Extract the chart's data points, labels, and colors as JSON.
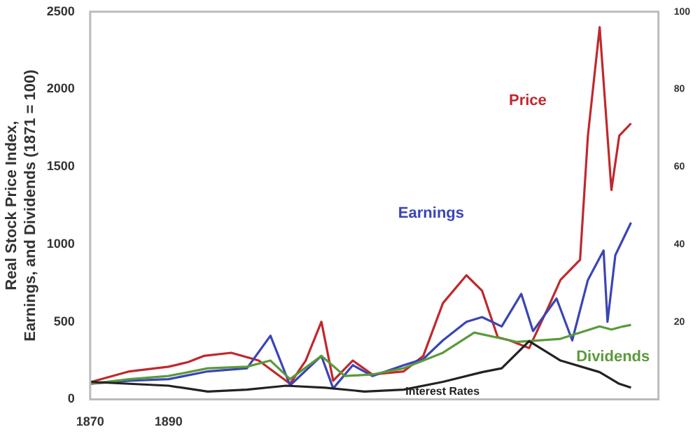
{
  "chart_data": {
    "type": "line",
    "ylabel": "Real Stock Price Index,\nEarnings, and Dividends (1871 = 100)",
    "xlim": [
      1870,
      2015
    ],
    "xticks": [
      1870,
      1890
    ],
    "ylim": [
      0,
      2500
    ],
    "yticks": [
      0,
      500,
      1000,
      1500,
      2000,
      2500
    ],
    "y2lim": [
      0,
      100
    ],
    "y2ticks": [
      20,
      40,
      60,
      80,
      100
    ],
    "grid": false,
    "legend": false,
    "marker": "none",
    "line_style": "solid",
    "series": [
      {
        "name": "Interest Rates",
        "color": "#222222",
        "axis": "y2",
        "x": [
          1870,
          1880,
          1890,
          1900,
          1910,
          1920,
          1930,
          1940,
          1950,
          1960,
          1970,
          1975,
          1982,
          1990,
          2000,
          2005,
          2008
        ],
        "values": [
          4.5,
          4,
          3.5,
          2,
          2.5,
          3.5,
          3,
          2,
          2.5,
          4.5,
          7,
          8,
          15,
          10,
          7,
          4,
          3
        ]
      },
      {
        "name": "Dividends",
        "color": "#5a9a3a",
        "x": [
          1870,
          1880,
          1890,
          1900,
          1910,
          1916,
          1921,
          1929,
          1935,
          1942,
          1950,
          1960,
          1968,
          1979,
          1990,
          2000,
          2003,
          2006,
          2008
        ],
        "values": [
          100,
          130,
          150,
          200,
          210,
          250,
          130,
          280,
          150,
          160,
          200,
          300,
          430,
          370,
          390,
          470,
          450,
          470,
          480
        ]
      },
      {
        "name": "Earnings",
        "color": "#3a45b5",
        "x": [
          1870,
          1880,
          1890,
          1900,
          1910,
          1916,
          1921,
          1929,
          1932,
          1937,
          1942,
          1950,
          1955,
          1960,
          1966,
          1970,
          1975,
          1980,
          1983,
          1989,
          1993,
          1997,
          2001,
          2002,
          2004,
          2008
        ],
        "values": [
          100,
          120,
          130,
          180,
          200,
          410,
          90,
          280,
          70,
          220,
          150,
          220,
          260,
          380,
          500,
          530,
          470,
          680,
          440,
          650,
          380,
          770,
          960,
          500,
          930,
          1140
        ]
      },
      {
        "name": "Price",
        "color": "#c0282d",
        "x": [
          1870,
          1880,
          1890,
          1895,
          1899,
          1906,
          1913,
          1921,
          1925,
          1929,
          1932,
          1937,
          1942,
          1950,
          1955,
          1960,
          1966,
          1970,
          1974,
          1977,
          1982,
          1987,
          1990,
          1995,
          1997,
          2000,
          2003,
          2005,
          2008
        ],
        "values": [
          110,
          180,
          210,
          240,
          280,
          300,
          250,
          100,
          250,
          500,
          120,
          250,
          160,
          180,
          280,
          620,
          800,
          700,
          400,
          380,
          330,
          600,
          770,
          900,
          1700,
          2400,
          1350,
          1700,
          1780
        ]
      }
    ]
  }
}
